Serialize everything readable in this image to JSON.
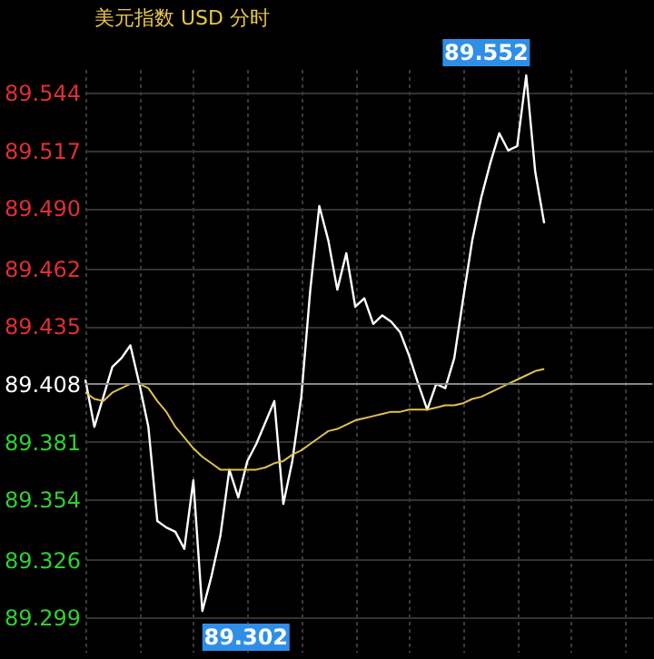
{
  "chart_data": {
    "type": "line",
    "title": "美元指数 USD 分时",
    "categories": [
      null,
      null,
      null,
      null,
      null,
      null,
      null,
      null,
      null,
      null,
      null,
      null,
      null,
      null,
      null,
      null,
      null,
      null,
      null,
      null,
      null,
      null,
      null,
      null,
      null,
      null,
      null,
      null,
      null,
      null,
      null,
      null,
      null,
      null,
      null,
      null,
      null,
      null,
      null,
      null,
      null,
      null,
      null,
      null,
      null,
      null,
      null,
      null,
      null,
      null,
      null,
      null,
      null,
      null,
      null,
      null,
      null,
      null,
      null,
      null,
      null,
      null,
      null,
      null
    ],
    "series": [
      {
        "color": "#ffffff",
        "values": [
          89.41,
          89.388,
          89.402,
          89.416,
          89.42,
          89.426,
          89.408,
          89.388,
          89.344,
          89.341,
          89.339,
          89.331,
          89.363,
          89.302,
          89.318,
          89.337,
          89.368,
          89.355,
          89.372,
          89.38,
          89.39,
          89.4,
          89.352,
          89.372,
          89.402,
          89.452,
          89.491,
          89.475,
          89.452,
          89.469,
          89.444,
          89.448,
          89.436,
          89.44,
          89.437,
          89.432,
          89.421,
          89.408,
          89.396,
          89.408,
          89.406,
          89.42,
          89.448,
          89.475,
          89.495,
          89.511,
          89.525,
          89.517,
          89.519,
          89.552,
          89.507,
          89.483,
          null,
          null,
          null,
          null,
          null,
          null,
          null,
          null,
          null,
          null,
          null,
          null
        ]
      },
      {
        "color": "#e0c050",
        "values": [
          89.404,
          89.401,
          89.4,
          89.404,
          89.406,
          89.408,
          89.408,
          89.406,
          89.4,
          89.395,
          89.388,
          89.383,
          89.378,
          89.374,
          89.371,
          89.368,
          89.368,
          89.368,
          89.368,
          89.368,
          89.369,
          89.371,
          89.372,
          89.375,
          89.377,
          89.38,
          89.383,
          89.386,
          89.387,
          89.389,
          89.391,
          89.392,
          89.393,
          89.394,
          89.395,
          89.395,
          89.396,
          89.396,
          89.396,
          89.397,
          89.398,
          89.398,
          89.399,
          89.401,
          89.402,
          89.404,
          89.406,
          89.408,
          89.41,
          89.412,
          89.414,
          89.415,
          null,
          null,
          null,
          null,
          null,
          null,
          null,
          null,
          null,
          null,
          null,
          null
        ]
      }
    ],
    "ylim": [
      89.283,
      89.555
    ],
    "yticks": [
      89.299,
      89.326,
      89.354,
      89.381,
      89.408,
      89.435,
      89.462,
      {
        "value": 89.49,
        "label": "89.490"
      },
      89.517,
      89.544
    ],
    "ref_lines": [
      {
        "axis": "y",
        "value": 89.408,
        "color": "#888888"
      }
    ],
    "annotations": [
      "89.552",
      "89.302"
    ],
    "grid": true,
    "tick_labels": "y",
    "marker": "none",
    "line_style": "solid"
  }
}
